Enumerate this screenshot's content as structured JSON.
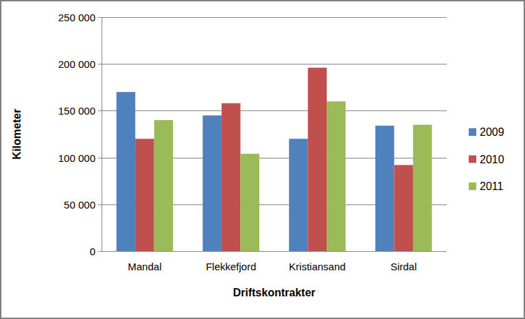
{
  "chart_data": {
    "type": "bar",
    "x_label": "Driftskontrakter",
    "y_label": "Kilometer",
    "categories": [
      "Mandal",
      "Flekkefjord",
      "Kristiansand",
      "Sirdal"
    ],
    "series": [
      {
        "name": "2009",
        "color": "#4f81bd",
        "values": [
          170000,
          145000,
          120000,
          134000
        ]
      },
      {
        "name": "2010",
        "color": "#c0504d",
        "values": [
          120000,
          158000,
          196000,
          92000
        ]
      },
      {
        "name": "2011",
        "color": "#9bbb59",
        "values": [
          140000,
          104000,
          160000,
          135000
        ]
      }
    ],
    "ylim": [
      0,
      250000
    ],
    "yticks": [
      0,
      {
        "value": 50000,
        "label": "50 000"
      },
      {
        "value": 100000,
        "label": "100 000"
      },
      {
        "value": 150000,
        "label": "150 000"
      },
      {
        "value": 200000,
        "label": "200 000"
      },
      {
        "value": 250000,
        "label": "250 000"
      }
    ],
    "grid": true,
    "legend": "right"
  }
}
